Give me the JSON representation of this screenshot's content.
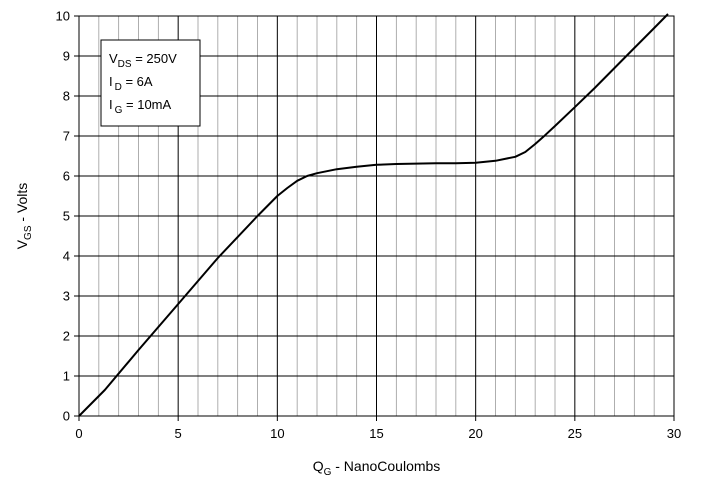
{
  "chart_data": {
    "type": "line",
    "title": "",
    "xlabel": {
      "main": "Q",
      "sub": "G",
      "rest": " - NanoCoulombs"
    },
    "ylabel": {
      "main": "V",
      "sub": "GS",
      "rest": " - Volts"
    },
    "xlim": [
      0,
      30
    ],
    "ylim": [
      0,
      10
    ],
    "x_ticks": [
      "0",
      "5",
      "10",
      "15",
      "20",
      "25",
      "30"
    ],
    "y_ticks": [
      "0",
      "1",
      "2",
      "3",
      "4",
      "5",
      "6",
      "7",
      "8",
      "9",
      "10"
    ],
    "grid": true,
    "minor_x_grid_step": 1,
    "major_x_grid_step": 5,
    "y_grid_step": 1,
    "legend_position": "top-left",
    "legend": [
      {
        "main": "V",
        "sub": "DS",
        "rest": " = 250V"
      },
      {
        "main": "I",
        "sub": "D",
        "rest": " = 6A"
      },
      {
        "main": "I",
        "sub": "G",
        "rest": " = 10mA"
      }
    ],
    "series": [
      {
        "color": "#000000",
        "x": [
          0,
          1.3,
          3,
          5,
          7,
          9,
          10,
          10.5,
          11,
          11.5,
          12,
          12.5,
          13,
          14,
          15,
          16,
          17,
          18,
          19,
          20,
          21,
          22,
          22.5,
          23,
          23.5,
          24,
          25,
          26,
          27,
          28,
          29,
          29.7
        ],
        "y": [
          0,
          0.65,
          1.65,
          2.8,
          3.95,
          5.0,
          5.5,
          5.7,
          5.88,
          6.0,
          6.07,
          6.12,
          6.17,
          6.23,
          6.28,
          6.3,
          6.31,
          6.32,
          6.32,
          6.33,
          6.38,
          6.48,
          6.6,
          6.8,
          7.02,
          7.25,
          7.72,
          8.2,
          8.7,
          9.2,
          9.7,
          10.05
        ]
      }
    ]
  }
}
